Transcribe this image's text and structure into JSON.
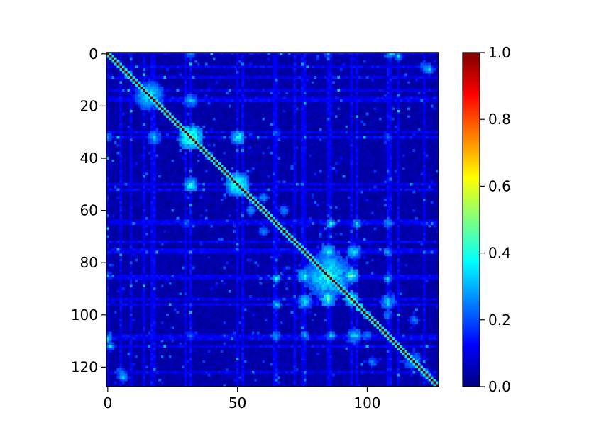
{
  "chart_data": {
    "type": "heatmap",
    "title": "",
    "xlabel": "",
    "ylabel": "",
    "grid": false,
    "matrix_size": 128,
    "x_ticks": [
      0,
      50,
      100
    ],
    "x_tick_labels": [
      "0",
      "50",
      "100"
    ],
    "y_ticks": [
      0,
      20,
      40,
      60,
      80,
      100,
      120
    ],
    "y_tick_labels": [
      "0",
      "20",
      "40",
      "60",
      "80",
      "100",
      "120"
    ],
    "xlim": [
      -0.5,
      127.5
    ],
    "ylim": [
      127.5,
      -0.5
    ],
    "diagonal_value": 1.0,
    "background_value": 0.02,
    "colormap": "jet",
    "colorbar": {
      "range": [
        0.0,
        1.0
      ],
      "ticks": [
        0.0,
        0.2,
        0.4,
        0.6,
        0.8,
        1.0
      ],
      "tick_labels": [
        "0.0",
        "0.2",
        "0.4",
        "0.6",
        "0.8",
        "1.0"
      ],
      "placement": "right"
    },
    "hot_spots": [
      {
        "i": 32,
        "j": 32,
        "value": 0.45,
        "radius": 5
      },
      {
        "i": 50,
        "j": 50,
        "value": 0.42,
        "radius": 5
      },
      {
        "i": 16,
        "j": 16,
        "value": 0.35,
        "radius": 6
      },
      {
        "i": 32,
        "j": 50,
        "value": 0.4,
        "radius": 3
      },
      {
        "i": 18,
        "j": 32,
        "value": 0.3,
        "radius": 3
      },
      {
        "i": 85,
        "j": 85,
        "value": 0.4,
        "radius": 9
      },
      {
        "i": 85,
        "j": 94,
        "value": 0.45,
        "radius": 3
      },
      {
        "i": 94,
        "j": 94,
        "value": 0.42,
        "radius": 3
      },
      {
        "i": 76,
        "j": 85,
        "value": 0.38,
        "radius": 3
      },
      {
        "i": 76,
        "j": 95,
        "value": 0.35,
        "radius": 3
      },
      {
        "i": 65,
        "j": 86,
        "value": 0.35,
        "radius": 2
      },
      {
        "i": 65,
        "j": 96,
        "value": 0.35,
        "radius": 2
      },
      {
        "i": 65,
        "j": 108,
        "value": 0.3,
        "radius": 2
      },
      {
        "i": 108,
        "j": 86,
        "value": 0.32,
        "radius": 2
      },
      {
        "i": 108,
        "j": 96,
        "value": 0.3,
        "radius": 2
      },
      {
        "i": 76,
        "j": 108,
        "value": 0.3,
        "radius": 2
      },
      {
        "i": 95,
        "j": 108,
        "value": 0.35,
        "radius": 3
      },
      {
        "i": 0,
        "j": 32,
        "value": 0.3,
        "radius": 2
      },
      {
        "i": 0,
        "j": 109,
        "value": 0.35,
        "radius": 2
      },
      {
        "i": 0,
        "j": 85,
        "value": 0.25,
        "radius": 2
      },
      {
        "i": 5,
        "j": 122,
        "value": 0.3,
        "radius": 2
      },
      {
        "i": 112,
        "j": 1,
        "value": 0.32,
        "radius": 2
      },
      {
        "i": 124,
        "j": 6,
        "value": 0.3,
        "radius": 2
      },
      {
        "i": 100,
        "j": 108,
        "value": 0.28,
        "radius": 2
      },
      {
        "i": 102,
        "j": 118,
        "value": 0.28,
        "radius": 2
      },
      {
        "i": 117,
        "j": 118,
        "value": 0.3,
        "radius": 3
      },
      {
        "i": 60,
        "j": 68,
        "value": 0.28,
        "radius": 2
      },
      {
        "i": 55,
        "j": 60,
        "value": 0.3,
        "radius": 2
      },
      {
        "i": 65,
        "j": 30,
        "value": 0.22,
        "radius": 2
      },
      {
        "i": 108,
        "j": 32,
        "value": 0.22,
        "radius": 2
      }
    ],
    "bands": [
      0,
      5,
      9,
      14,
      17,
      18,
      30,
      32,
      50,
      52,
      64,
      65,
      72,
      75,
      76,
      85,
      86,
      94,
      96,
      108,
      109,
      112,
      122
    ],
    "colormap_stops": [
      "#00007f",
      "#0000ff",
      "#007fff",
      "#00ffff",
      "#7fff7f",
      "#ffff00",
      "#ff7f00",
      "#ff0000",
      "#7f0000"
    ]
  }
}
